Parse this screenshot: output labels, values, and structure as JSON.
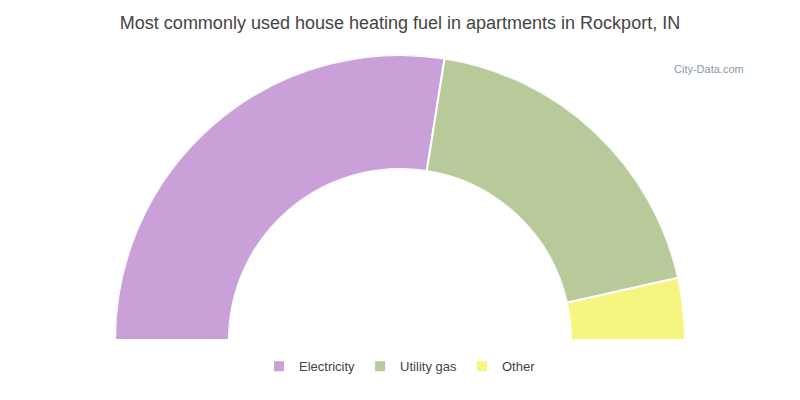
{
  "chart_data": {
    "type": "donut",
    "title": "Most commonly used house heating fuel in apartments in Rockport, IN",
    "categories": [
      "Electricity",
      "Utility gas",
      "Other"
    ],
    "values": [
      55,
      38,
      7
    ],
    "colors": [
      "#c9a0d8",
      "#b8c99a",
      "#f5f580"
    ],
    "annotations": [
      "City-Data.com"
    ],
    "legend": "bottom"
  }
}
